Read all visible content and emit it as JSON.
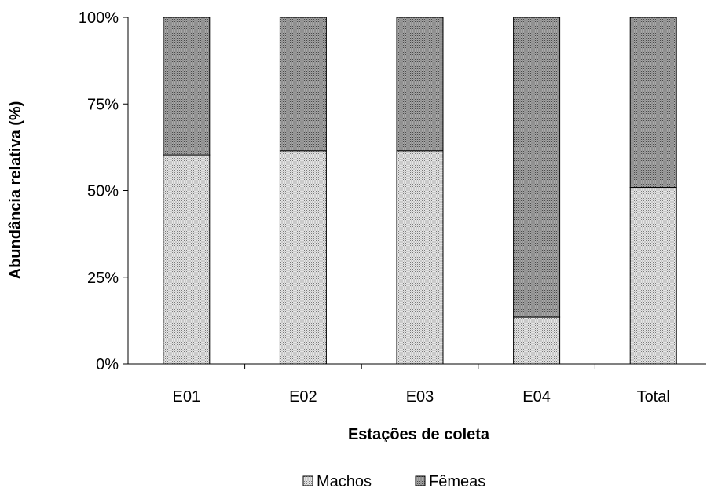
{
  "chart_data": {
    "type": "bar",
    "stacked": true,
    "normalized": true,
    "title": "",
    "xlabel": "Estações de coleta",
    "ylabel": "Abundância relativa (%)",
    "ylim": [
      0,
      100
    ],
    "yticks": [
      "0%",
      "25%",
      "50%",
      "75%",
      "100%"
    ],
    "categories": [
      "E01",
      "E02",
      "E03",
      "E04",
      "Total"
    ],
    "series": [
      {
        "name": "Machos",
        "values": [
          60.3,
          61.5,
          61.5,
          13.6,
          50.9
        ],
        "color": "#c8c8c8"
      },
      {
        "name": "Fêmeas",
        "values": [
          39.7,
          38.5,
          38.5,
          86.4,
          49.1
        ],
        "color": "#9a9a9a"
      }
    ],
    "grid": false,
    "legend_position": "bottom"
  }
}
